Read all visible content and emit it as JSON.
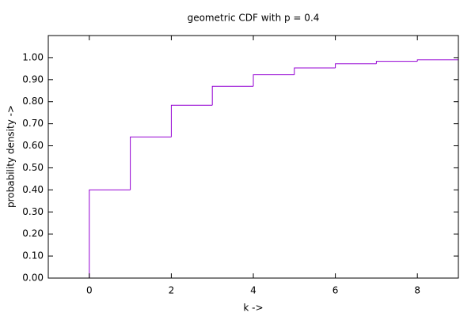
{
  "chart_data": {
    "type": "step",
    "title": "geometric CDF with p = 0.4",
    "x_label": "k ->",
    "y_label": "probability density ->",
    "x": [
      0,
      1,
      2,
      3,
      4,
      5,
      6,
      7,
      8,
      9
    ],
    "series": [
      {
        "name": "geometric CDF",
        "color": "#9400d3",
        "values": [
          0.4,
          0.64,
          0.784,
          0.87,
          0.922,
          0.953,
          0.972,
          0.983,
          0.99,
          0.994
        ]
      }
    ],
    "xlim": [
      -1,
      9
    ],
    "ylim": [
      0,
      1.1
    ],
    "xticks": [
      0,
      2,
      4,
      6,
      8
    ],
    "yticks": [
      {
        "value": 0,
        "label": "0.00"
      },
      {
        "value": 0.1,
        "label": "0.10"
      },
      {
        "value": 0.2,
        "label": "0.20"
      },
      {
        "value": 0.3,
        "label": "0.30"
      },
      {
        "value": 0.4,
        "label": "0.40"
      },
      {
        "value": 0.5,
        "label": "0.50"
      },
      {
        "value": 0.6,
        "label": "0.60"
      },
      {
        "value": 0.7,
        "label": "0.70"
      },
      {
        "value": 0.8,
        "label": "0.80"
      },
      {
        "value": 0.9,
        "label": "0.90"
      },
      {
        "value": 1.0,
        "label": "1.00"
      }
    ],
    "grid": false
  }
}
